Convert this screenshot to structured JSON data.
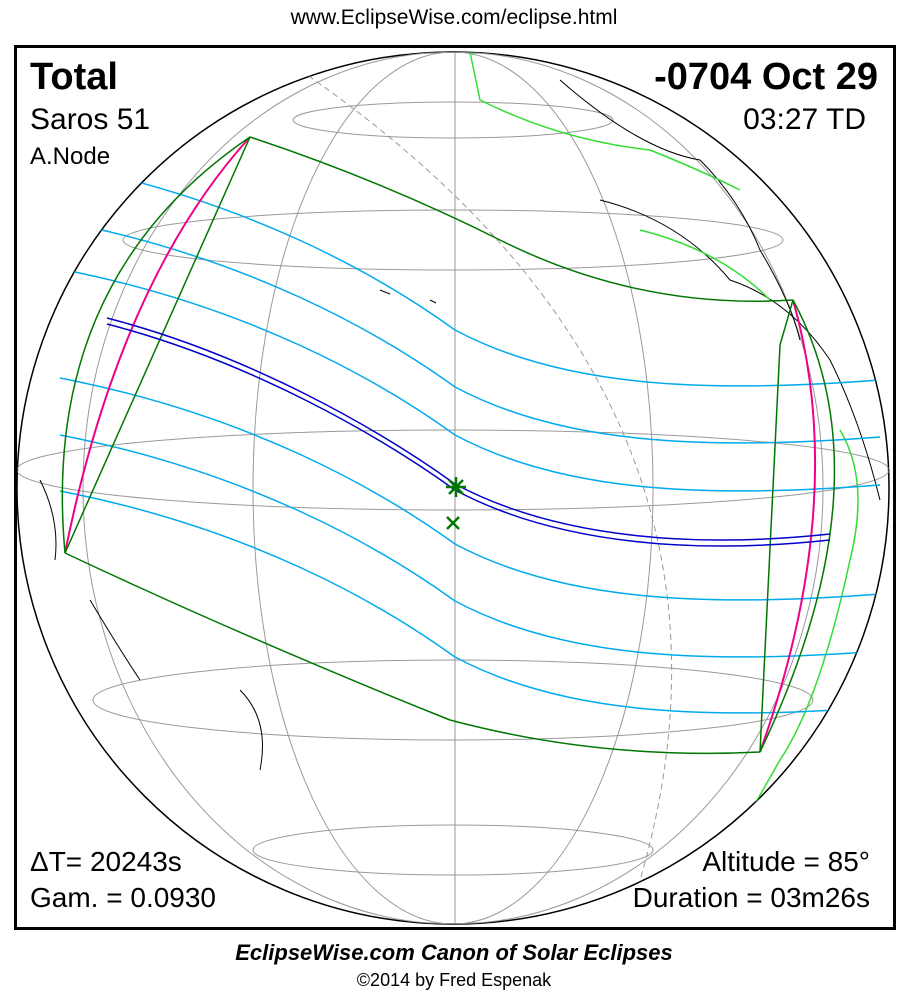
{
  "header": {
    "url": "www.EclipseWise.com/eclipse.html"
  },
  "eclipse": {
    "type": "Total",
    "saros": "Saros  51",
    "node": "A.Node",
    "date": "-0704 Oct 29",
    "time": "03:27 TD",
    "delta_t": "ΔT=  20243s",
    "gamma": "Gam. = 0.0930",
    "altitude": "Altitude = 85°",
    "duration": "Duration = 03m26s"
  },
  "footer": {
    "title": "EclipseWise.com Canon of Solar Eclipses",
    "copyright": "©2014 by Fred Espenak"
  },
  "colors": {
    "central_line": "#0000cc",
    "umbral_lines": "#00aaee",
    "limits": "#007700",
    "rise_set": "#ee0088",
    "grid": "#999999"
  }
}
